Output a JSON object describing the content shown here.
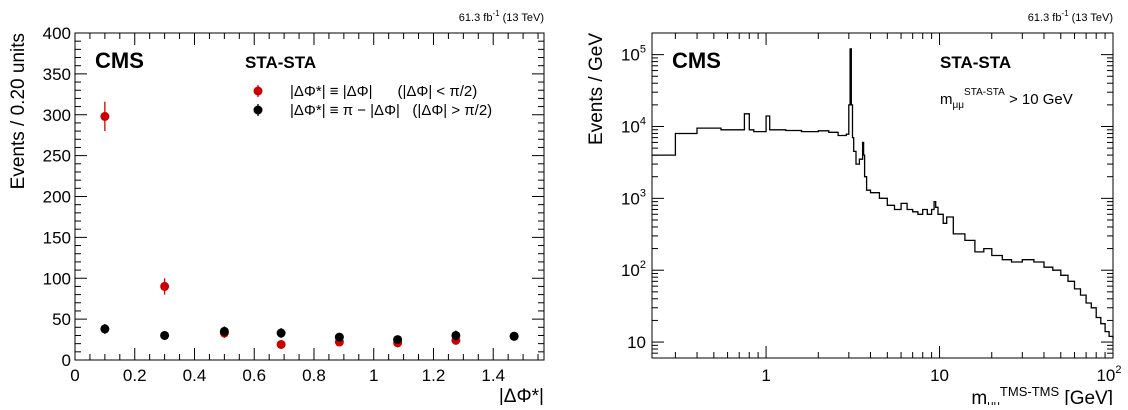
{
  "chart_data": [
    {
      "type": "scatter",
      "lumi": "61.3 fb",
      "lumi_sup": "-1",
      "energy": " (13 TeV)",
      "experiment": "CMS",
      "selection": "STA-STA",
      "ylabel": "Events / 0.20 units",
      "xlabel": "|ΔΦ*|",
      "xlim": [
        0,
        1.57
      ],
      "ylim": [
        0,
        400
      ],
      "xticks": [
        0,
        0.2,
        0.4,
        0.6,
        0.8,
        1,
        1.2,
        1.4
      ],
      "xtick_labels": [
        "0",
        "0.2",
        "0.4",
        "0.6",
        "0.8",
        "1",
        "1.2",
        "1.4"
      ],
      "yticks": [
        0,
        50,
        100,
        150,
        200,
        250,
        300,
        350,
        400
      ],
      "ytick_labels": [
        "0",
        "50",
        "100",
        "150",
        "200",
        "250",
        "300",
        "350",
        "400"
      ],
      "legend": "top-right",
      "series": [
        {
          "name": "|ΔΦ*| ≡ |ΔΦ|      (|ΔΦ| < π/2)",
          "color": "#cc0000",
          "x": [
            0.1,
            0.3,
            0.5,
            0.69,
            0.885,
            1.08,
            1.275,
            1.47
          ],
          "y": [
            298,
            90,
            33,
            19,
            22,
            21,
            24,
            29
          ],
          "err": [
            18,
            10,
            6,
            4,
            5,
            5,
            5,
            5
          ]
        },
        {
          "name": "|ΔΦ*| ≡ π − |ΔΦ|   (|ΔΦ| > π/2)",
          "color": "#000000",
          "x": [
            0.1,
            0.3,
            0.5,
            0.69,
            0.885,
            1.08,
            1.275,
            1.47
          ],
          "y": [
            38,
            30,
            35,
            33,
            28,
            25,
            30,
            29
          ],
          "err": [
            6,
            5,
            6,
            6,
            5,
            5,
            6,
            5
          ]
        }
      ]
    },
    {
      "type": "line",
      "scale": "log-log",
      "lumi": "61.3 fb",
      "lumi_sup": "-1",
      "energy": " (13 TeV)",
      "experiment": "CMS",
      "selection": "STA-STA",
      "cut_label": "m",
      "cut_sub": "μμ",
      "cut_sup": "STA-STA",
      "cut_value": " > 10 GeV",
      "ylabel": "Events / GeV",
      "xlabel": "m",
      "xlabel_sub": "μμ",
      "xlabel_sup": "TMS-TMS",
      "xlabel_unit": " [GeV]",
      "xlim": [
        0.22,
        100
      ],
      "ylim": [
        6,
        200000
      ],
      "xtick_labels": [
        "1",
        "10",
        "10"
      ],
      "xtick_label_sup": "2",
      "ytick_labels": [
        "10",
        "10",
        "10",
        "10",
        "10"
      ],
      "ytick_sups": [
        "",
        "2",
        "3",
        "4",
        "5"
      ],
      "step": true,
      "x": [
        0.22,
        0.3,
        0.4,
        0.55,
        0.7,
        0.75,
        0.8,
        0.85,
        0.95,
        1.0,
        1.05,
        1.3,
        1.6,
        2.0,
        2.3,
        2.6,
        2.9,
        3.0,
        3.05,
        3.1,
        3.15,
        3.2,
        3.3,
        3.45,
        3.6,
        3.65,
        3.7,
        3.8,
        4.0,
        4.5,
        5.0,
        5.5,
        6.0,
        6.5,
        7.0,
        7.5,
        8.0,
        8.5,
        9.0,
        9.3,
        9.5,
        9.8,
        10.5,
        11,
        12,
        14,
        16,
        18,
        20,
        23,
        26,
        30,
        35,
        40,
        45,
        50,
        55,
        60,
        65,
        70,
        75,
        80,
        85,
        90,
        95,
        100
      ],
      "y": [
        4000,
        8000,
        9500,
        9000,
        9000,
        15000,
        9000,
        8500,
        8500,
        14000,
        9000,
        8800,
        8500,
        8700,
        8300,
        7500,
        7800,
        20000,
        120000,
        20000,
        7000,
        4500,
        3000,
        3500,
        6000,
        4000,
        2000,
        1300,
        1200,
        1000,
        800,
        700,
        850,
        700,
        650,
        600,
        700,
        600,
        700,
        900,
        750,
        600,
        450,
        550,
        320,
        260,
        180,
        200,
        160,
        140,
        130,
        140,
        130,
        110,
        100,
        85,
        70,
        55,
        45,
        35,
        30,
        22,
        18,
        14,
        12,
        11
      ]
    }
  ]
}
